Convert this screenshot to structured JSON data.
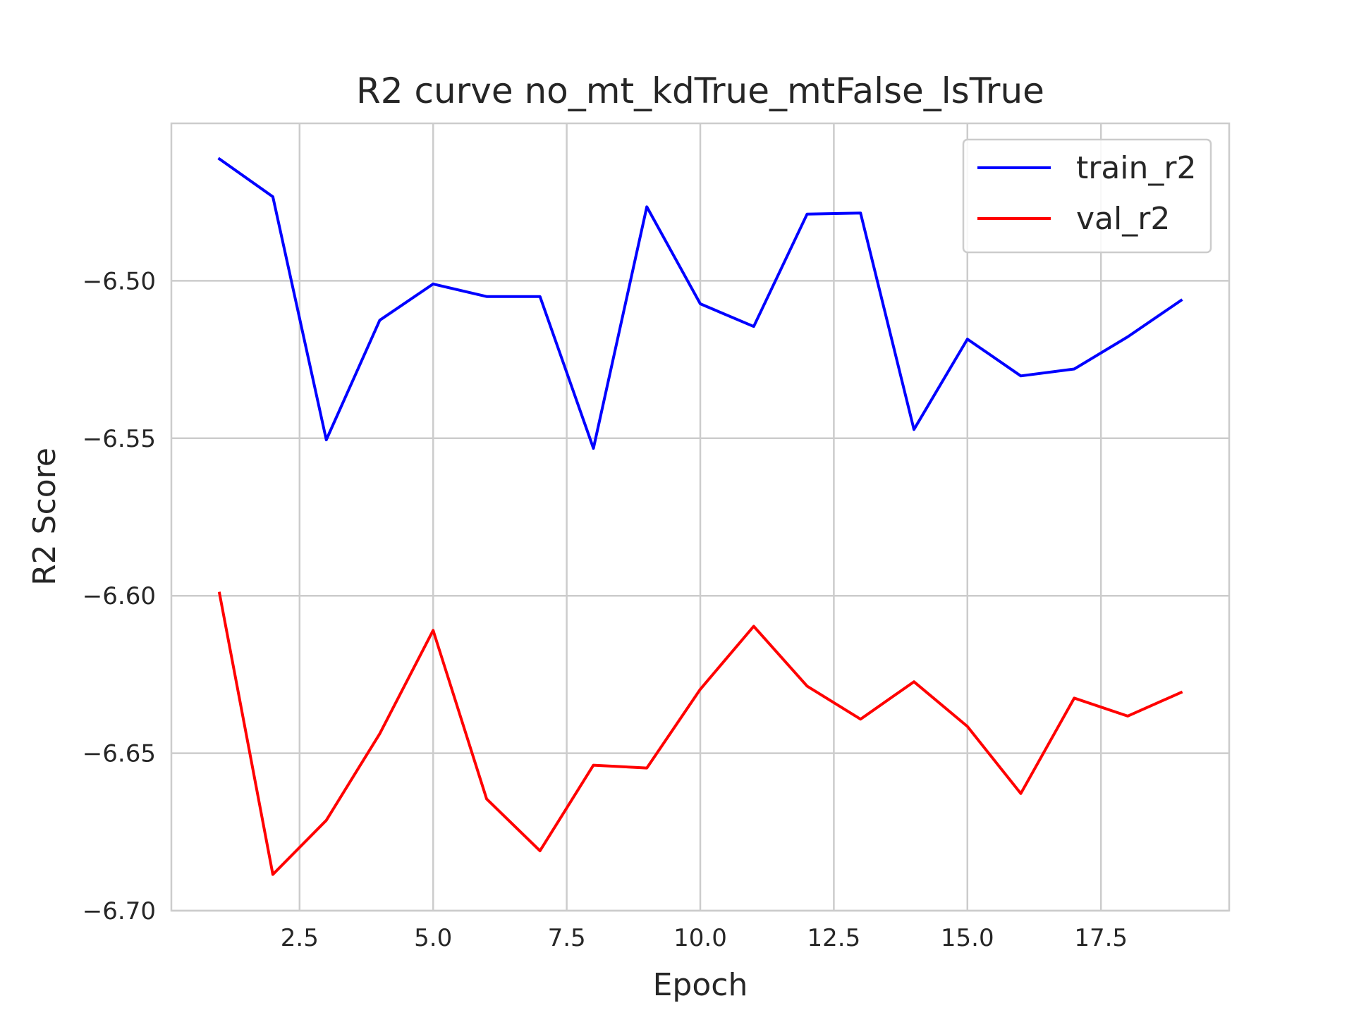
{
  "chart_data": {
    "type": "line",
    "title": "R2 curve no_mt_kdTrue_mtFalse_lsTrue",
    "xlabel": "Epoch",
    "ylabel": "R2 Score",
    "xlim": [
      0.1,
      19.9
    ],
    "ylim": [
      -6.7,
      -6.45
    ],
    "xticks": [
      2.5,
      5.0,
      7.5,
      10.0,
      12.5,
      15.0,
      17.5
    ],
    "xtick_labels": [
      "2.5",
      "5.0",
      "7.5",
      "10.0",
      "12.5",
      "15.0",
      "17.5"
    ],
    "yticks": [
      -6.7,
      -6.65,
      -6.6,
      -6.55,
      -6.5
    ],
    "ytick_labels": [
      "−6.70",
      "−6.65",
      "−6.60",
      "−6.55",
      "−6.50"
    ],
    "grid": true,
    "legend_position": "top-right",
    "x": [
      1,
      2,
      3,
      4,
      5,
      6,
      7,
      8,
      9,
      10,
      11,
      12,
      13,
      14,
      15,
      16,
      17,
      18,
      19
    ],
    "series": [
      {
        "name": "train_r2",
        "color": "#0000ff",
        "values": [
          -6.4613,
          -6.4733,
          -6.5505,
          -6.5125,
          -6.501,
          -6.505,
          -6.505,
          -6.5532,
          -6.4765,
          -6.5073,
          -6.5145,
          -6.4788,
          -6.4785,
          -6.5472,
          -6.5185,
          -6.5302,
          -6.528,
          -6.5178,
          -6.5062
        ]
      },
      {
        "name": "val_r2",
        "color": "#ff0000",
        "values": [
          -6.5992,
          -6.6885,
          -6.6713,
          -6.6438,
          -6.611,
          -6.6645,
          -6.681,
          -6.6538,
          -6.6547,
          -6.6297,
          -6.6097,
          -6.6287,
          -6.6392,
          -6.6273,
          -6.6415,
          -6.6628,
          -6.6325,
          -6.6382,
          -6.6307
        ]
      }
    ]
  }
}
